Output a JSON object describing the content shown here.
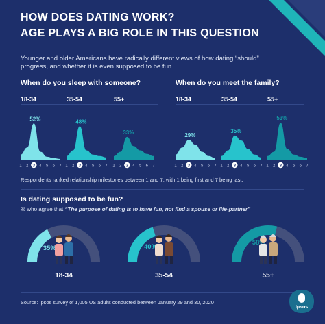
{
  "title_line1": "HOW DOES DATING WORK?",
  "title_line2": "AGE PLAYS A BIG ROLE IN THIS QUESTION",
  "intro": "Younger and older Americans have radically different views of how dating “should” progress, and whether it is even supposed to be fun.",
  "note": "Respondents ranked relationship milestones between 1 and 7, with 1 being first and 7 being last.",
  "dating_question": "Is dating supposed to be fun?",
  "dating_subtitle_prefix": "% who agree that ",
  "dating_subtitle_quote": "“The purpose of dating is to have fun, not find a spouse or life-partner”",
  "source": "Source: Ipsos survey of 1,005 US adults conducted between January 29 and 30, 2020",
  "logo_text": "Ipsos",
  "colors": {
    "background": "#1d2f6b",
    "teal_light": "#7fe3ea",
    "teal_mid": "#27c3cc",
    "teal_dark": "#149aa5",
    "gauge_track": "#44507c",
    "accent_stripe": "#1fb5b8"
  },
  "icons": [
    "couple-18-34-icon",
    "couple-35-54-icon",
    "couple-55-plus-icon",
    "ipsos-logo-icon"
  ],
  "chart_data": [
    {
      "type": "area",
      "title": "When do you sleep with someone?",
      "x": [
        1,
        2,
        3,
        4,
        5,
        6,
        7
      ],
      "highlight_x": 3,
      "series": [
        {
          "name": "18-34",
          "values": [
            8,
            18,
            52,
            12,
            5,
            3,
            2
          ],
          "label": "52%",
          "color": "#7fe3ea"
        },
        {
          "name": "35-54",
          "values": [
            6,
            14,
            48,
            14,
            8,
            6,
            4
          ],
          "label": "48%",
          "color": "#27c3cc"
        },
        {
          "name": "55+",
          "values": [
            6,
            12,
            33,
            20,
            14,
            9,
            6
          ],
          "label": "33%",
          "color": "#149aa5"
        }
      ]
    },
    {
      "type": "area",
      "title": "When do you meet the family?",
      "x": [
        1,
        2,
        3,
        4,
        5,
        6,
        7
      ],
      "highlight_x": 3,
      "series": [
        {
          "name": "18-34",
          "values": [
            8,
            18,
            29,
            22,
            12,
            6,
            3
          ],
          "label": "29%",
          "color": "#7fe3ea"
        },
        {
          "name": "35-54",
          "values": [
            6,
            14,
            35,
            28,
            16,
            8,
            4
          ],
          "label": "35%",
          "color": "#27c3cc"
        },
        {
          "name": "55+",
          "values": [
            6,
            12,
            53,
            16,
            8,
            5,
            3
          ],
          "label": "53%",
          "color": "#149aa5"
        }
      ]
    },
    {
      "type": "gauge",
      "title": "Is dating supposed to be fun?",
      "categories": [
        "18-34",
        "35-54",
        "55+"
      ],
      "values": [
        35,
        40,
        58
      ],
      "labels": [
        "35%",
        "40%",
        "58%"
      ],
      "colors": [
        "#7fe3ea",
        "#27c3cc",
        "#149aa5"
      ],
      "range": [
        0,
        100
      ]
    }
  ]
}
